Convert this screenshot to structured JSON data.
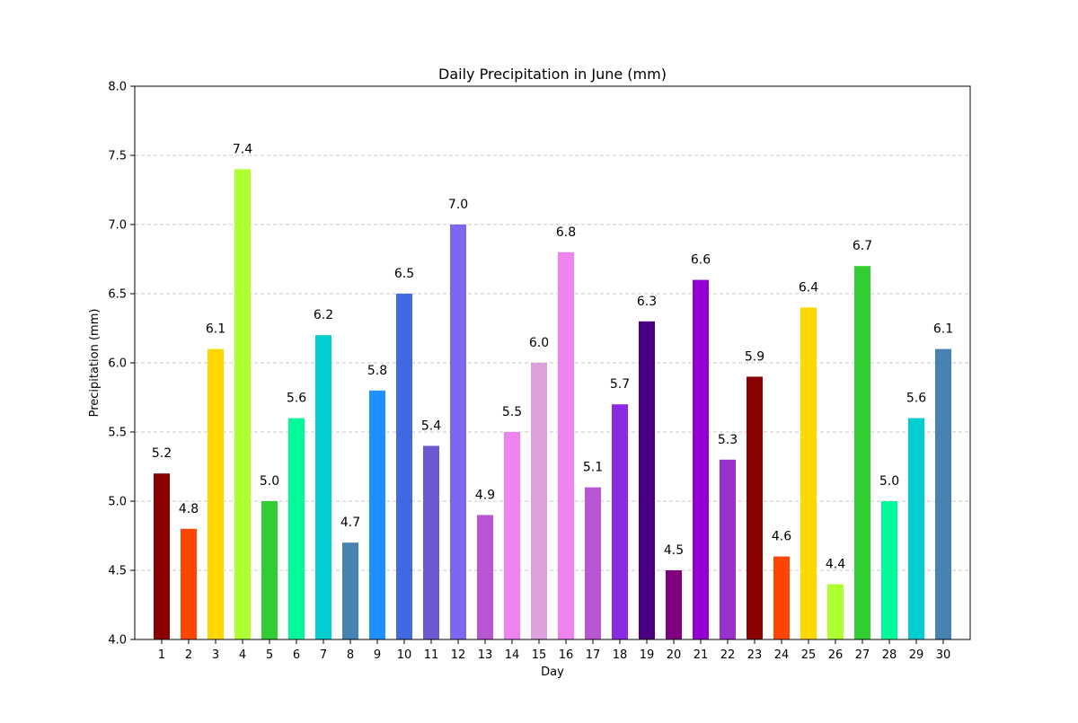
{
  "chart_data": {
    "type": "bar",
    "title": "Daily Precipitation in June (mm)",
    "xlabel": "Day",
    "ylabel": "Precipitation (mm)",
    "categories": [
      "1",
      "2",
      "3",
      "4",
      "5",
      "6",
      "7",
      "8",
      "9",
      "10",
      "11",
      "12",
      "13",
      "14",
      "15",
      "16",
      "17",
      "18",
      "19",
      "20",
      "21",
      "22",
      "23",
      "24",
      "25",
      "26",
      "27",
      "28",
      "29",
      "30"
    ],
    "values": [
      5.2,
      4.8,
      6.1,
      7.4,
      5.0,
      5.6,
      6.2,
      4.7,
      5.8,
      6.5,
      5.4,
      7.0,
      4.9,
      5.5,
      6.0,
      6.8,
      5.1,
      5.7,
      6.3,
      4.5,
      6.6,
      5.3,
      5.9,
      4.6,
      6.4,
      4.4,
      6.7,
      5.0,
      5.6,
      6.1
    ],
    "data_labels": [
      "5.2",
      "4.8",
      "6.1",
      "7.4",
      "5.0",
      "5.6",
      "6.2",
      "4.7",
      "5.8",
      "6.5",
      "5.4",
      "7.0",
      "4.9",
      "5.5",
      "6.0",
      "6.8",
      "5.1",
      "5.7",
      "6.3",
      "4.5",
      "6.6",
      "5.3",
      "5.9",
      "4.6",
      "6.4",
      "4.4",
      "6.7",
      "5.0",
      "5.6",
      "6.1"
    ],
    "colors": [
      "#8B0000",
      "#FF4500",
      "#FFD700",
      "#ADFF2F",
      "#32CD32",
      "#00FA9A",
      "#00CED1",
      "#4682B4",
      "#1E90FF",
      "#4169E1",
      "#6A5ACD",
      "#7B68EE",
      "#BA55D3",
      "#EE82EE",
      "#DDA0DD",
      "#EE82EE",
      "#BA55D3",
      "#8A2BE2",
      "#4B0082",
      "#800080",
      "#9400D3",
      "#9932CC",
      "#8B0000",
      "#FF4500",
      "#FFD700",
      "#ADFF2F",
      "#32CD32",
      "#00FA9A",
      "#00CED1",
      "#4682B4"
    ],
    "ylim": [
      4.0,
      8.0
    ],
    "yticks": [
      "4.0",
      "4.5",
      "5.0",
      "5.5",
      "6.0",
      "6.5",
      "7.0",
      "7.5",
      "8.0"
    ],
    "grid": "y-dashed",
    "legend": "none"
  }
}
